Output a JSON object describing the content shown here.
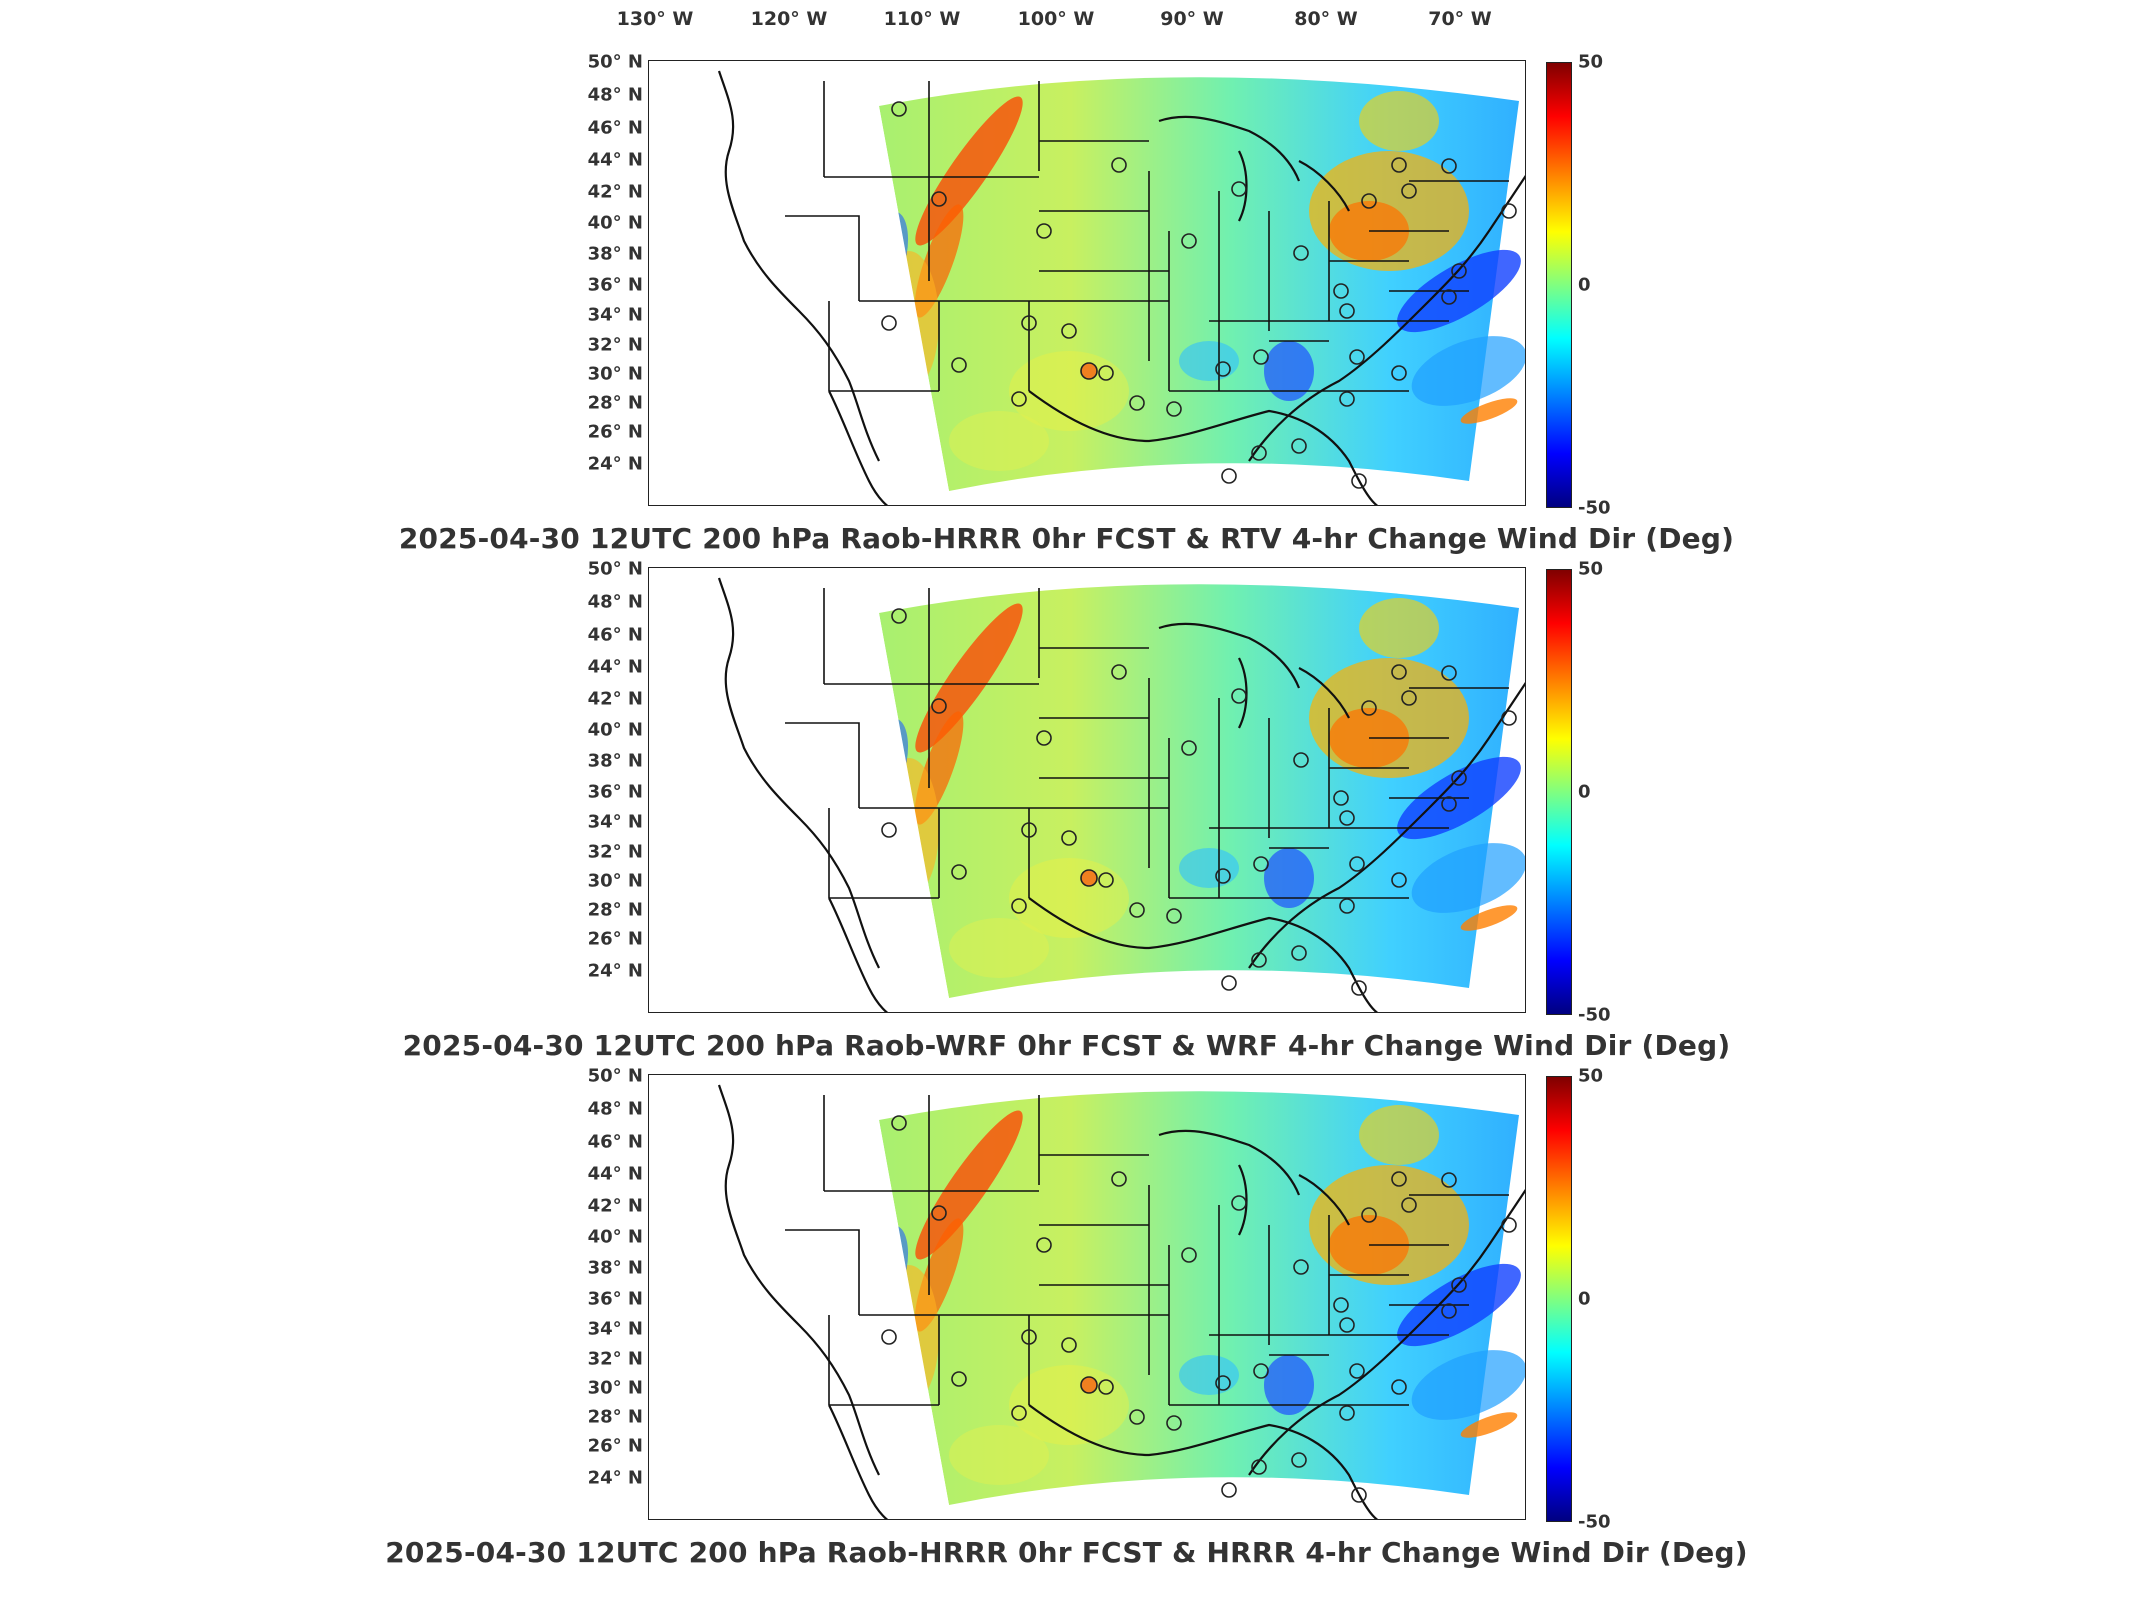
{
  "lon_labels": [
    "130° W",
    "120° W",
    "110° W",
    "100° W",
    "90° W",
    "80° W",
    "70° W"
  ],
  "lat_labels": [
    "50° N",
    "48° N",
    "46° N",
    "44° N",
    "42° N",
    "40° N",
    "38° N",
    "36° N",
    "34° N",
    "32° N",
    "30° N",
    "28° N",
    "26° N",
    "24° N"
  ],
  "colorbar": {
    "max": "50",
    "mid": "0",
    "min": "-50",
    "colors": [
      "#800000",
      "#ff0000",
      "#ff8000",
      "#ffff00",
      "#80ff80",
      "#00ffff",
      "#0080ff",
      "#0000ff",
      "#000080"
    ]
  },
  "panels": [
    {
      "title": "2025-04-30 12UTC 200 hPa Raob-HRRR 0hr FCST & RTV 4-hr Change Wind Dir (Deg)"
    },
    {
      "title": "2025-04-30 12UTC 200 hPa Raob-WRF 0hr FCST & WRF 4-hr Change Wind Dir (Deg)"
    },
    {
      "title": "2025-04-30 12UTC 200 hPa Raob-HRRR 0hr FCST & HRRR 4-hr Change Wind Dir (Deg)"
    }
  ]
}
